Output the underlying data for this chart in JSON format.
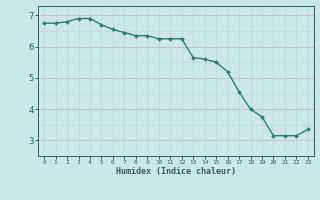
{
  "x": [
    0,
    1,
    2,
    3,
    4,
    5,
    6,
    7,
    8,
    9,
    10,
    11,
    12,
    13,
    14,
    15,
    16,
    17,
    18,
    19,
    20,
    21,
    22,
    23
  ],
  "y": [
    6.75,
    6.75,
    6.8,
    6.9,
    6.9,
    6.7,
    6.55,
    6.45,
    6.35,
    6.35,
    6.25,
    6.25,
    6.25,
    5.65,
    5.6,
    5.5,
    5.2,
    4.55,
    4.0,
    3.75,
    3.15,
    3.15,
    3.15,
    3.35
  ],
  "line_color": "#2e7d6e",
  "marker_color": "#2e7d6e",
  "bg_color": "#cce8e4",
  "grid_color_x": "#b8d8d4",
  "grid_color_y": "#d4a0a0",
  "xlabel": "Humidex (Indice chaleur)",
  "xlabel_color": "#2e6060",
  "tick_color": "#2e6060",
  "axis_color": "#2e6060",
  "ylim": [
    2.5,
    7.3
  ],
  "xlim": [
    -0.5,
    23.5
  ],
  "yticks": [
    3,
    4,
    5,
    6,
    7
  ],
  "xticks": [
    0,
    1,
    2,
    3,
    4,
    5,
    6,
    7,
    8,
    9,
    10,
    11,
    12,
    13,
    14,
    15,
    16,
    17,
    18,
    19,
    20,
    21,
    22,
    23
  ]
}
